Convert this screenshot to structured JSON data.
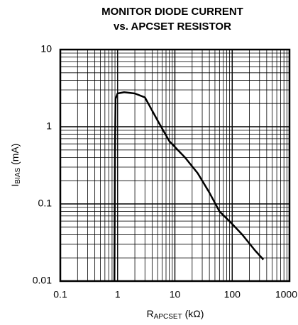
{
  "chart_data": {
    "type": "line",
    "title": [
      "MONITOR DIODE CURRENT",
      "vs. APCSET RESISTOR"
    ],
    "ylabel": {
      "main": "I",
      "sub": "BIAS",
      "rest": " (mA)"
    },
    "xlabel": {
      "main": "R",
      "sub": "APCSET",
      "rest": " (kΩ)"
    },
    "log_x": true,
    "log_y": true,
    "grid": true,
    "minor_grid": true,
    "xlim": [
      0.1,
      1000
    ],
    "ylim": [
      0.01,
      10
    ],
    "xticks": [
      0.1,
      1,
      10,
      100,
      1000
    ],
    "yticks": [
      0.01,
      0.1,
      1,
      10
    ],
    "series": [
      {
        "name": null,
        "color": "#000000",
        "x": [
          0.88,
          0.9,
          0.92,
          1.0,
          1.3,
          2,
          3,
          5,
          8,
          15,
          25,
          40,
          60,
          100,
          150,
          250,
          350
        ],
        "values": [
          0.01,
          0.5,
          2.3,
          2.7,
          2.8,
          2.7,
          2.4,
          1.2,
          0.65,
          0.4,
          0.25,
          0.14,
          0.08,
          0.055,
          0.04,
          0.025,
          0.019
        ]
      }
    ]
  }
}
